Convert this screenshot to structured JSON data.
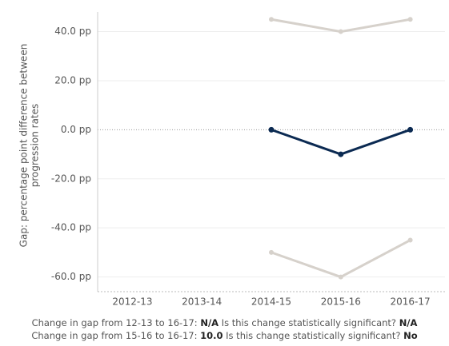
{
  "chart_data": {
    "type": "line",
    "ylabel": [
      "Gap: percentage point difference between",
      "progression rates"
    ],
    "categories": [
      "2012-13",
      "2013-14",
      "2014-15",
      "2015-16",
      "2016-17"
    ],
    "series": [
      {
        "color": "#d6d1cb",
        "values": [
          null,
          null,
          45,
          40,
          45
        ]
      },
      {
        "color": "#0b2a52",
        "values": [
          null,
          null,
          0,
          -10,
          0
        ],
        "markers": true
      },
      {
        "color": "#d6d1cb",
        "values": [
          null,
          null,
          -50,
          -60,
          -45
        ]
      }
    ],
    "ylim": [
      -66,
      48
    ],
    "yticks": [
      {
        "value": 40,
        "label": "40.0 pp"
      },
      {
        "value": 20,
        "label": "20.0 pp"
      },
      {
        "value": 0,
        "label": "0.0 pp"
      },
      {
        "value": -20,
        "label": "-20.0 pp"
      },
      {
        "value": -40,
        "label": "-40.0 pp"
      },
      {
        "value": -60,
        "label": "-60.0 pp"
      }
    ],
    "grid": true
  },
  "notes": [
    {
      "label": "Change in gap from 12-13 to 16-17:",
      "value": "N/A",
      "question": "Is this change statistically significant?",
      "answer": "N/A"
    },
    {
      "label": "Change in gap from 15-16 to 16-17:",
      "value": "10.0",
      "question": "Is this change statistically significant?",
      "answer": "No"
    }
  ]
}
